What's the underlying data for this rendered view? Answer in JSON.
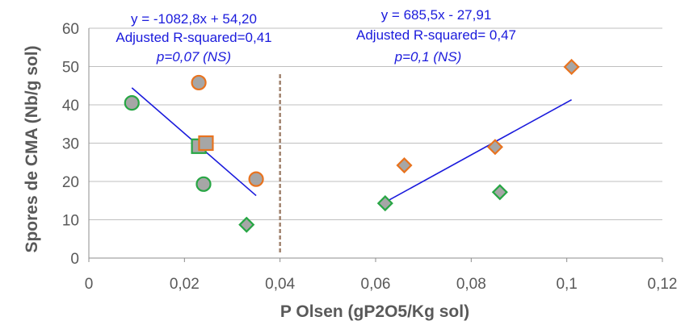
{
  "chart_data": {
    "type": "scatter",
    "xlabel": "P Olsen (gP2O5/Kg sol)",
    "ylabel": "Spores de CMA (Nb/g sol)",
    "xlim": [
      0,
      0.12
    ],
    "ylim": [
      0,
      60
    ],
    "x_ticks": [
      "0",
      "0,02",
      "0,04",
      "0,06",
      "0,08",
      "0,1",
      "0,12"
    ],
    "y_ticks": [
      "0",
      "10",
      "20",
      "30",
      "40",
      "50",
      "60"
    ],
    "grid": "horizontal",
    "threshold_x": 0.04,
    "colors": {
      "grid": "#bfbfbf",
      "axis": "#8c8c8c",
      "marker_fill": "#a6a6a6",
      "green": "#27a644",
      "orange": "#e8731f",
      "trend": "#1a1adc",
      "threshold": "#a0826d",
      "text": "#595959"
    },
    "points": [
      {
        "x": 0.009,
        "y": 40.5,
        "shape": "circle",
        "edge": "green"
      },
      {
        "x": 0.024,
        "y": 19.3,
        "shape": "circle",
        "edge": "green"
      },
      {
        "x": 0.023,
        "y": 29.2,
        "shape": "square",
        "edge": "green"
      },
      {
        "x": 0.033,
        "y": 8.7,
        "shape": "diamond",
        "edge": "green"
      },
      {
        "x": 0.023,
        "y": 45.8,
        "shape": "circle",
        "edge": "orange"
      },
      {
        "x": 0.0245,
        "y": 30.0,
        "shape": "square",
        "edge": "orange"
      },
      {
        "x": 0.035,
        "y": 20.6,
        "shape": "circle",
        "edge": "orange"
      },
      {
        "x": 0.062,
        "y": 14.3,
        "shape": "diamond",
        "edge": "green"
      },
      {
        "x": 0.086,
        "y": 17.2,
        "shape": "diamond",
        "edge": "green"
      },
      {
        "x": 0.066,
        "y": 24.2,
        "shape": "diamond",
        "edge": "orange"
      },
      {
        "x": 0.085,
        "y": 29.0,
        "shape": "diamond",
        "edge": "orange"
      },
      {
        "x": 0.101,
        "y": 49.9,
        "shape": "diamond",
        "edge": "orange"
      }
    ],
    "trendlines": [
      {
        "x0": 0.009,
        "x1": 0.035,
        "slope": -1082.8,
        "intercept": 54.2
      },
      {
        "x0": 0.062,
        "x1": 0.101,
        "slope": 685.5,
        "intercept": -27.91
      }
    ],
    "annotations": {
      "left": {
        "equation": "y = -1082,8x + 54,20",
        "r2": "Adjusted R-squared=0,41",
        "p": "p=0,07 (NS)"
      },
      "right": {
        "equation": "y = 685,5x - 27,91",
        "r2": "Adjusted R-squared= 0,47",
        "p": "p=0,1 (NS)"
      }
    }
  }
}
